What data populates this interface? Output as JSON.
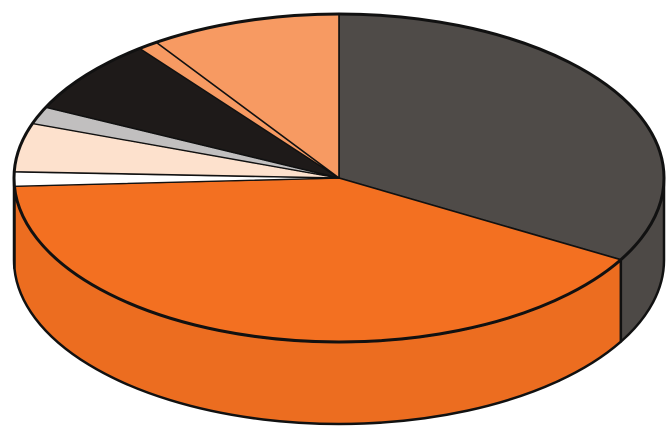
{
  "chart_data": {
    "type": "pie",
    "style": "3d",
    "title": "",
    "legend": "none",
    "data_labels": "none",
    "slices": [
      {
        "value": 33.3,
        "color": "#4f4b48"
      },
      {
        "value": 40.9,
        "color": "#f37021"
      },
      {
        "value": 1.4,
        "color": "#ffffff"
      },
      {
        "value": 4.8,
        "color": "#fde1cd"
      },
      {
        "value": 1.7,
        "color": "#c1bfbf"
      },
      {
        "value": 7.4,
        "color": "#1e1a19"
      },
      {
        "value": 1.0,
        "color": "#f79a62"
      },
      {
        "value": 9.5,
        "color": "#f79a62"
      }
    ]
  }
}
